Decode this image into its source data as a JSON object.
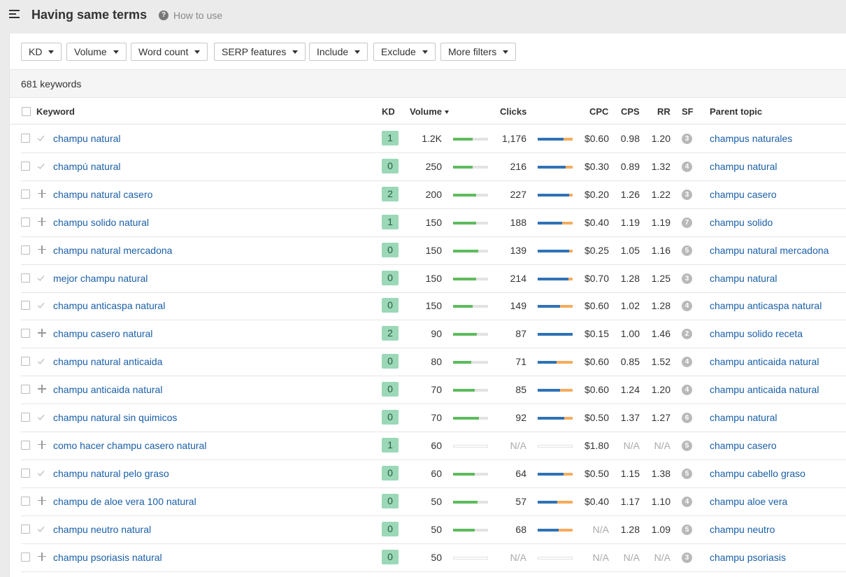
{
  "header": {
    "title": "Having same terms",
    "help_label": "How to use"
  },
  "filters": [
    "KD",
    "Volume",
    "Word count",
    "SERP features",
    "Include",
    "Exclude",
    "More filters"
  ],
  "count_label": "681 keywords",
  "columns": {
    "keyword": "Keyword",
    "kd": "KD",
    "volume": "Volume",
    "clicks": "Clicks",
    "cpc": "CPC",
    "cps": "CPS",
    "rr": "RR",
    "sf": "SF",
    "parent": "Parent topic"
  },
  "colors": {
    "link": "#1a5fa8",
    "kd_badge": "#9ad8b8",
    "volume_bar": "#5dbb5d",
    "organic_clicks": "#2f72b5",
    "paid_clicks": "#f5ac5e"
  },
  "rows": [
    {
      "mark": "check",
      "keyword": "champu natural",
      "kd": "1",
      "volume": "1.2K",
      "vol_fill": 0.55,
      "clicks": "1,176",
      "click_blue": 0.74,
      "click_orange": 0.26,
      "cpc": "$0.60",
      "cps": "0.98",
      "rr": "1.20",
      "sf": "3",
      "parent": "champus naturales"
    },
    {
      "mark": "check",
      "keyword": "champú natural",
      "kd": "0",
      "volume": "250",
      "vol_fill": 0.55,
      "clicks": "216",
      "click_blue": 0.8,
      "click_orange": 0.2,
      "cpc": "$0.30",
      "cps": "0.89",
      "rr": "1.32",
      "sf": "4",
      "parent": "champu natural"
    },
    {
      "mark": "plus",
      "keyword": "champu natural casero",
      "kd": "2",
      "volume": "200",
      "vol_fill": 0.65,
      "clicks": "227",
      "click_blue": 0.9,
      "click_orange": 0.1,
      "cpc": "$0.20",
      "cps": "1.26",
      "rr": "1.22",
      "sf": "3",
      "parent": "champu casero"
    },
    {
      "mark": "plus",
      "keyword": "champu solido natural",
      "kd": "1",
      "volume": "150",
      "vol_fill": 0.65,
      "clicks": "188",
      "click_blue": 0.7,
      "click_orange": 0.3,
      "cpc": "$0.40",
      "cps": "1.19",
      "rr": "1.19",
      "sf": "7",
      "parent": "champu solido"
    },
    {
      "mark": "plus",
      "keyword": "champu natural mercadona",
      "kd": "0",
      "volume": "150",
      "vol_fill": 0.72,
      "clicks": "139",
      "click_blue": 0.9,
      "click_orange": 0.1,
      "cpc": "$0.25",
      "cps": "1.05",
      "rr": "1.16",
      "sf": "5",
      "parent": "champu natural mercadona"
    },
    {
      "mark": "check",
      "keyword": "mejor champu natural",
      "kd": "0",
      "volume": "150",
      "vol_fill": 0.65,
      "clicks": "214",
      "click_blue": 0.88,
      "click_orange": 0.12,
      "cpc": "$0.70",
      "cps": "1.28",
      "rr": "1.25",
      "sf": "3",
      "parent": "champu natural"
    },
    {
      "mark": "check",
      "keyword": "champu anticaspa natural",
      "kd": "0",
      "volume": "150",
      "vol_fill": 0.55,
      "clicks": "149",
      "click_blue": 0.64,
      "click_orange": 0.36,
      "cpc": "$0.60",
      "cps": "1.02",
      "rr": "1.28",
      "sf": "4",
      "parent": "champu anticaspa natural"
    },
    {
      "mark": "plus",
      "keyword": "champu casero natural",
      "kd": "2",
      "volume": "90",
      "vol_fill": 0.68,
      "clicks": "87",
      "click_blue": 1.0,
      "click_orange": 0.0,
      "cpc": "$0.15",
      "cps": "1.00",
      "rr": "1.46",
      "sf": "2",
      "parent": "champu solido receta"
    },
    {
      "mark": "check",
      "keyword": "champu natural anticaida",
      "kd": "0",
      "volume": "80",
      "vol_fill": 0.52,
      "clicks": "71",
      "click_blue": 0.54,
      "click_orange": 0.46,
      "cpc": "$0.60",
      "cps": "0.85",
      "rr": "1.52",
      "sf": "4",
      "parent": "champu anticaida natural"
    },
    {
      "mark": "plus",
      "keyword": "champu anticaida natural",
      "kd": "0",
      "volume": "70",
      "vol_fill": 0.62,
      "clicks": "85",
      "click_blue": 0.64,
      "click_orange": 0.36,
      "cpc": "$0.60",
      "cps": "1.24",
      "rr": "1.20",
      "sf": "4",
      "parent": "champu anticaida natural"
    },
    {
      "mark": "check",
      "keyword": "champu natural sin quimicos",
      "kd": "0",
      "volume": "70",
      "vol_fill": 0.74,
      "clicks": "92",
      "click_blue": 0.76,
      "click_orange": 0.24,
      "cpc": "$0.50",
      "cps": "1.37",
      "rr": "1.27",
      "sf": "6",
      "parent": "champu natural"
    },
    {
      "mark": "plus",
      "keyword": "como hacer champu casero natural",
      "kd": "1",
      "volume": "60",
      "vol_fill": 0,
      "clicks": "N/A",
      "click_blue": 0,
      "click_orange": 0,
      "cpc": "$1.80",
      "cps": "N/A",
      "rr": "N/A",
      "sf": "5",
      "parent": "champu casero"
    },
    {
      "mark": "check",
      "keyword": "champu natural pelo graso",
      "kd": "0",
      "volume": "60",
      "vol_fill": 0.62,
      "clicks": "64",
      "click_blue": 0.74,
      "click_orange": 0.26,
      "cpc": "$0.50",
      "cps": "1.15",
      "rr": "1.38",
      "sf": "5",
      "parent": "champu cabello graso"
    },
    {
      "mark": "plus",
      "keyword": "champu de aloe vera 100 natural",
      "kd": "0",
      "volume": "50",
      "vol_fill": 0.7,
      "clicks": "57",
      "click_blue": 0.56,
      "click_orange": 0.44,
      "cpc": "$0.40",
      "cps": "1.17",
      "rr": "1.10",
      "sf": "4",
      "parent": "champu aloe vera"
    },
    {
      "mark": "check",
      "keyword": "champu neutro natural",
      "kd": "0",
      "volume": "50",
      "vol_fill": 0.62,
      "clicks": "68",
      "click_blue": 0.6,
      "click_orange": 0.4,
      "cpc": "N/A",
      "cps": "1.28",
      "rr": "1.09",
      "sf": "5",
      "parent": "champu neutro"
    },
    {
      "mark": "plus",
      "keyword": "champu psoriasis natural",
      "kd": "0",
      "volume": "50",
      "vol_fill": 0,
      "clicks": "N/A",
      "click_blue": 0,
      "click_orange": 0,
      "cpc": "N/A",
      "cps": "N/A",
      "rr": "N/A",
      "sf": "3",
      "parent": "champu psoriasis"
    }
  ]
}
